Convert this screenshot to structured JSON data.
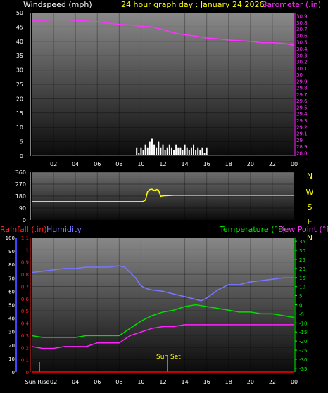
{
  "header": {
    "title": "24 hour graph day : January 24 2026",
    "left_label": "Windspeed (mph)",
    "right_label": "Barometer (.in)"
  },
  "panel3_labels": {
    "rainfall": "Rainfall (.in)",
    "humidity": "Humidity",
    "temperature": "Temperature (°F)",
    "dewpoint": "Dew Point (°F)"
  },
  "annotations": {
    "sun_set": "Sun Set",
    "sun_rise": "Sun Rise"
  },
  "colors": {
    "barometer": "#ff33ff",
    "wind": "#ffffff",
    "wind_dir": "#ffff00",
    "humidity": "#7777ff",
    "temperature": "#00dd00",
    "dewpoint": "#ff22ff",
    "rainfall": "#ff0000",
    "title": "#ffff00"
  },
  "chart_data": [
    {
      "id": "wind_baro",
      "type": "line",
      "title": "24 hour graph day : January 24 2026",
      "xlabel": "",
      "x_ticks": [
        "02",
        "04",
        "06",
        "08",
        "10",
        "12",
        "14",
        "16",
        "18",
        "20",
        "22",
        "00"
      ],
      "xlim": [
        0,
        24
      ],
      "grid": true,
      "y_left": {
        "label": "Windspeed (mph)",
        "lim": [
          0,
          50
        ],
        "ticks": [
          0,
          5,
          10,
          15,
          20,
          25,
          30,
          35,
          40,
          45,
          50
        ]
      },
      "y_right": {
        "label": "Barometer (.in)",
        "lim": [
          28.75,
          30.95
        ],
        "ticks": [
          "28.8",
          "28.9",
          "29",
          "29.1",
          "29.2",
          "29.3",
          "29.4",
          "29.5",
          "29.6",
          "29.7",
          "29.8",
          "29.9",
          "30",
          "30.1",
          "30.2",
          "30.3",
          "30.4",
          "30.5",
          "30.6",
          "30.7",
          "30.8",
          "30.9"
        ]
      },
      "series": [
        {
          "name": "Barometer",
          "axis": "right",
          "color": "#ff33ff",
          "x": [
            0,
            1,
            2,
            3,
            4,
            5,
            6,
            7,
            8,
            9,
            10,
            11,
            12,
            13,
            14,
            15,
            16,
            17,
            18,
            19,
            20,
            21,
            22,
            23,
            24
          ],
          "y": [
            30.83,
            30.83,
            30.84,
            30.84,
            30.83,
            30.82,
            30.81,
            30.79,
            30.77,
            30.76,
            30.74,
            30.73,
            30.69,
            30.64,
            30.61,
            30.59,
            30.56,
            30.55,
            30.53,
            30.52,
            30.51,
            30.49,
            30.49,
            30.48,
            30.45
          ]
        },
        {
          "name": "Windspeed",
          "axis": "left",
          "color": "#ffffff",
          "style": "bars",
          "x": [
            9.6,
            9.8,
            10,
            10.2,
            10.4,
            10.6,
            10.8,
            11,
            11.2,
            11.4,
            11.6,
            11.8,
            12,
            12.2,
            12.4,
            12.6,
            12.8,
            13,
            13.2,
            13.4,
            13.6,
            13.8,
            14,
            14.2,
            14.4,
            14.6,
            14.8,
            15,
            15.2,
            15.4,
            15.6,
            15.8,
            16
          ],
          "y": [
            3,
            1,
            3,
            2,
            4,
            3,
            5,
            6,
            4,
            3,
            5,
            3,
            4,
            2,
            3,
            4,
            3,
            2,
            4,
            3,
            3,
            2,
            4,
            3,
            2,
            3,
            4,
            2,
            3,
            2,
            3,
            1,
            3
          ]
        }
      ]
    },
    {
      "id": "wind_dir",
      "type": "line",
      "xlim": [
        0,
        24
      ],
      "grid": true,
      "y_left": {
        "lim": [
          0,
          360
        ],
        "ticks": [
          0,
          90,
          180,
          270,
          360
        ]
      },
      "y_right": {
        "labels": [
          "N",
          "W",
          "S",
          "E",
          "N"
        ]
      },
      "series": [
        {
          "name": "Wind Direction",
          "color": "#ffff00",
          "x": [
            0,
            9.6,
            9.8,
            10,
            10.2,
            10.4,
            10.6,
            10.8,
            11,
            11.2,
            11.4,
            11.6,
            11.8,
            12,
            13,
            14,
            16,
            18,
            20,
            22,
            24
          ],
          "y": [
            138,
            138,
            138,
            138,
            140,
            150,
            215,
            230,
            232,
            222,
            230,
            225,
            178,
            182,
            186,
            186,
            186,
            186,
            186,
            186,
            186
          ]
        }
      ]
    },
    {
      "id": "temp_hum_rain",
      "type": "line",
      "x_ticks": [
        "Sun Rise",
        "02",
        "04",
        "06",
        "08",
        "10",
        "12",
        "14",
        "16",
        "18",
        "20",
        "22",
        "00"
      ],
      "xlim": [
        0,
        24
      ],
      "grid": true,
      "y_humidity": {
        "label": "Humidity",
        "lim": [
          0,
          100
        ],
        "ticks": [
          0,
          10,
          20,
          30,
          40,
          50,
          60,
          70,
          80,
          90,
          100
        ]
      },
      "y_rain": {
        "label": "Rainfall (.in)",
        "lim": [
          0,
          1.1
        ],
        "ticks": [
          "0",
          "0.1",
          "0.2",
          "0.3",
          "0.4",
          "0.5",
          "0.6",
          "0.7",
          "0.8",
          "0.9",
          "1",
          "1.1"
        ]
      },
      "y_temp": {
        "label": "Temperature (°F)",
        "lim": [
          -37,
          37
        ],
        "ticks": [
          "-35",
          "-30",
          "-25",
          "-20",
          "-15",
          "-10",
          "-5",
          "0",
          "5",
          "10",
          "15",
          "20",
          "25",
          "30",
          "35"
        ]
      },
      "series": [
        {
          "name": "Humidity",
          "axis": "humidity",
          "color": "#7777ff",
          "x": [
            0,
            1,
            2,
            3,
            4,
            5,
            6,
            7,
            8,
            8.5,
            9,
            9.5,
            10,
            10.5,
            11,
            12,
            13,
            14,
            15,
            15.5,
            16,
            17,
            18,
            19,
            20,
            21,
            22,
            23,
            24
          ],
          "y": [
            74,
            75,
            76,
            77,
            77,
            78,
            78,
            78,
            79,
            78,
            74,
            70,
            64,
            62,
            61,
            60,
            58,
            56,
            54,
            53,
            55,
            61,
            65,
            65,
            67,
            68,
            69,
            70,
            70
          ]
        },
        {
          "name": "Temperature",
          "axis": "temp",
          "color": "#00dd00",
          "x": [
            0,
            1,
            2,
            3,
            4,
            5,
            6,
            7,
            8,
            8.5,
            9,
            10,
            11,
            12,
            13,
            14,
            15,
            16,
            17,
            18,
            19,
            20,
            21,
            22,
            23,
            24
          ],
          "y": [
            -17,
            -18,
            -18,
            -18,
            -18,
            -17,
            -17,
            -17,
            -17,
            -15,
            -13,
            -9,
            -6,
            -4,
            -3,
            -1,
            0,
            -1,
            -2,
            -3,
            -4,
            -4,
            -5,
            -5,
            -6,
            -7
          ]
        },
        {
          "name": "Dew Point",
          "axis": "temp",
          "color": "#ff22ff",
          "x": [
            0,
            1,
            2,
            3,
            4,
            5,
            6,
            7,
            8,
            8.5,
            9,
            10,
            11,
            12,
            13,
            14,
            15,
            16,
            17,
            18,
            19,
            20,
            21,
            22,
            23,
            24
          ],
          "y": [
            -23,
            -24,
            -24,
            -23,
            -23,
            -23,
            -21,
            -21,
            -21,
            -19,
            -17,
            -15,
            -13,
            -12,
            -12,
            -11,
            -11,
            -11,
            -11,
            -11,
            -11,
            -11,
            -11,
            -11,
            -11,
            -11
          ]
        },
        {
          "name": "Rainfall",
          "axis": "rain",
          "color": "#ff0000",
          "x": [
            0,
            24
          ],
          "y": [
            0,
            0
          ]
        }
      ]
    }
  ]
}
